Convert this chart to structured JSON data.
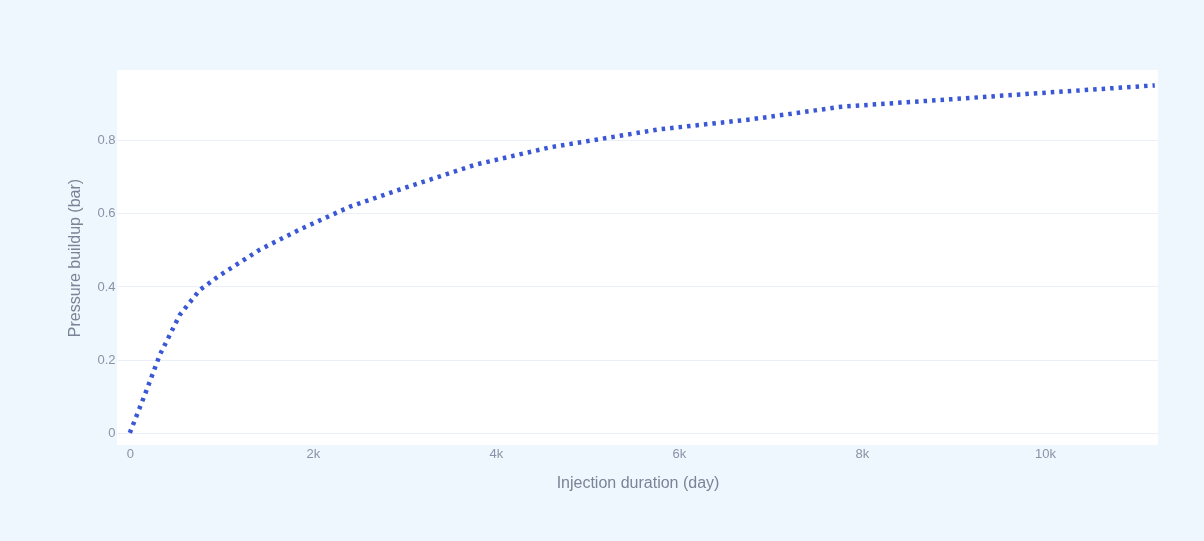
{
  "chart_data": {
    "type": "line",
    "xlabel": "Injection duration (day)",
    "ylabel": "Pressure buildup (bar)",
    "x": [
      0,
      164,
      328,
      546,
      765,
      984,
      1421,
      1858,
      2404,
      2951,
      3781,
      4590,
      5781,
      6776,
      7781,
      8962,
      10055,
      11200
    ],
    "series": [
      {
        "color": "#3a57d6",
        "values": [
          0,
          0.104,
          0.213,
          0.322,
          0.39,
          0.43,
          0.5,
          0.555,
          0.617,
          0.664,
          0.732,
          0.779,
          0.828,
          0.855,
          0.89,
          0.91,
          0.929,
          0.948
        ]
      }
    ],
    "xlim": [
      -140,
      11235
    ],
    "ylim": [
      -0.033,
      0.99
    ],
    "xticks": [
      {
        "value": 0,
        "label": "0"
      },
      {
        "value": 2000,
        "label": "2k"
      },
      {
        "value": 4000,
        "label": "4k"
      },
      {
        "value": 6000,
        "label": "6k"
      },
      {
        "value": 8000,
        "label": "8k"
      },
      {
        "value": 10000,
        "label": "10k"
      }
    ],
    "yticks": [
      0,
      0.2,
      0.4,
      0.6,
      0.8
    ],
    "grid": "y",
    "line_style": "dotted",
    "marker": "none",
    "legend": false
  }
}
